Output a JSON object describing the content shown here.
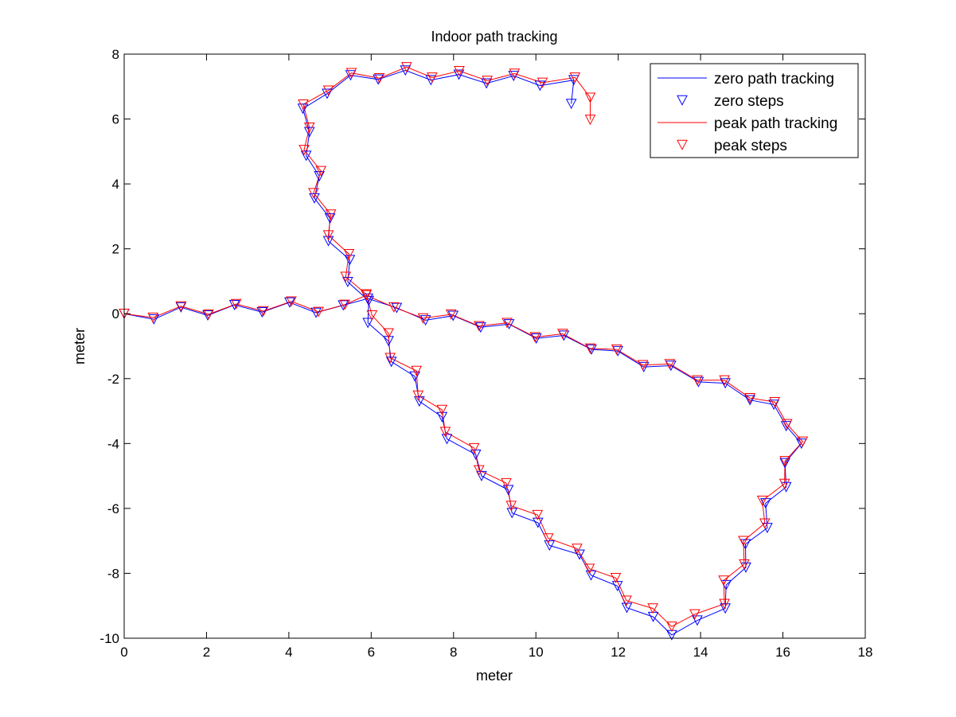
{
  "chart_data": {
    "type": "line",
    "title": "Indoor path tracking",
    "xlabel": "meter",
    "ylabel": "meter",
    "xlim": [
      0,
      18
    ],
    "ylim": [
      -10,
      8
    ],
    "xticks": [
      0,
      2,
      4,
      6,
      8,
      10,
      12,
      14,
      16,
      18
    ],
    "yticks": [
      -10,
      -8,
      -6,
      -4,
      -2,
      0,
      2,
      4,
      6,
      8
    ],
    "grid": false,
    "legend_position": "top-right",
    "series": [
      {
        "name": "zero path tracking",
        "kind": "line",
        "color": "#0000ff",
        "points": [
          [
            0,
            0
          ],
          [
            0.72,
            -0.17
          ],
          [
            1.38,
            0.2
          ],
          [
            2.03,
            -0.05
          ],
          [
            2.68,
            0.27
          ],
          [
            3.35,
            0.05
          ],
          [
            4.02,
            0.35
          ],
          [
            4.66,
            0.03
          ],
          [
            5.32,
            0.26
          ],
          [
            5.92,
            0.47
          ],
          [
            6.62,
            0.18
          ],
          [
            7.32,
            -0.2
          ],
          [
            7.99,
            -0.06
          ],
          [
            8.66,
            -0.42
          ],
          [
            9.35,
            -0.32
          ],
          [
            10.01,
            -0.76
          ],
          [
            10.68,
            -0.67
          ],
          [
            11.35,
            -1.1
          ],
          [
            11.99,
            -1.15
          ],
          [
            12.62,
            -1.64
          ],
          [
            13.28,
            -1.6
          ],
          [
            13.95,
            -2.1
          ],
          [
            14.6,
            -2.14
          ],
          [
            15.2,
            -2.66
          ],
          [
            15.78,
            -2.8
          ],
          [
            16.08,
            -3.46
          ],
          [
            16.45,
            -4.0
          ],
          [
            16.05,
            -4.6
          ],
          [
            16.08,
            -5.34
          ],
          [
            15.58,
            -5.84
          ],
          [
            15.62,
            -6.6
          ],
          [
            15.09,
            -7.1
          ],
          [
            15.1,
            -7.82
          ],
          [
            14.62,
            -8.36
          ],
          [
            14.6,
            -9.08
          ],
          [
            13.92,
            -9.45
          ],
          [
            13.3,
            -9.9
          ],
          [
            12.85,
            -9.34
          ],
          [
            12.21,
            -9.06
          ],
          [
            11.98,
            -8.39
          ],
          [
            11.34,
            -8.06
          ],
          [
            11.06,
            -7.42
          ],
          [
            10.33,
            -7.14
          ],
          [
            10.05,
            -6.44
          ],
          [
            9.42,
            -6.14
          ],
          [
            9.33,
            -5.43
          ],
          [
            8.68,
            -5.0
          ],
          [
            8.54,
            -4.34
          ],
          [
            7.84,
            -3.86
          ],
          [
            7.72,
            -3.18
          ],
          [
            7.17,
            -2.7
          ],
          [
            7.06,
            -1.93
          ],
          [
            6.49,
            -1.48
          ],
          [
            6.42,
            -0.84
          ],
          [
            5.92,
            -0.28
          ],
          [
            5.94,
            0.4
          ],
          [
            5.43,
            0.98
          ],
          [
            5.48,
            1.66
          ],
          [
            4.96,
            2.24
          ],
          [
            5.0,
            2.94
          ],
          [
            4.62,
            3.56
          ],
          [
            4.74,
            4.24
          ],
          [
            4.42,
            4.87
          ],
          [
            4.5,
            5.6
          ],
          [
            4.34,
            6.32
          ],
          [
            4.93,
            6.78
          ],
          [
            5.5,
            7.35
          ],
          [
            6.17,
            7.22
          ],
          [
            6.83,
            7.5
          ],
          [
            7.45,
            7.2
          ],
          [
            8.13,
            7.37
          ],
          [
            8.8,
            7.1
          ],
          [
            9.46,
            7.33
          ],
          [
            10.1,
            7.03
          ],
          [
            10.92,
            7.2
          ],
          [
            10.86,
            6.47
          ]
        ]
      },
      {
        "name": "zero steps",
        "kind": "markers",
        "color": "#0000ff",
        "marker": "triangle-down",
        "points": [
          [
            0,
            0
          ],
          [
            0.72,
            -0.17
          ],
          [
            1.38,
            0.2
          ],
          [
            2.03,
            -0.05
          ],
          [
            2.68,
            0.27
          ],
          [
            3.35,
            0.05
          ],
          [
            4.02,
            0.35
          ],
          [
            4.66,
            0.03
          ],
          [
            5.32,
            0.26
          ],
          [
            5.92,
            0.47
          ],
          [
            6.62,
            0.18
          ],
          [
            7.32,
            -0.2
          ],
          [
            7.99,
            -0.06
          ],
          [
            8.66,
            -0.42
          ],
          [
            9.35,
            -0.32
          ],
          [
            10.01,
            -0.76
          ],
          [
            10.68,
            -0.67
          ],
          [
            11.35,
            -1.1
          ],
          [
            11.99,
            -1.15
          ],
          [
            12.62,
            -1.64
          ],
          [
            13.28,
            -1.6
          ],
          [
            13.95,
            -2.1
          ],
          [
            14.6,
            -2.14
          ],
          [
            15.2,
            -2.66
          ],
          [
            15.78,
            -2.8
          ],
          [
            16.08,
            -3.46
          ],
          [
            16.45,
            -4.0
          ],
          [
            16.05,
            -4.6
          ],
          [
            16.08,
            -5.34
          ],
          [
            15.58,
            -5.84
          ],
          [
            15.62,
            -6.6
          ],
          [
            15.09,
            -7.1
          ],
          [
            15.1,
            -7.82
          ],
          [
            14.62,
            -8.36
          ],
          [
            14.6,
            -9.08
          ],
          [
            13.92,
            -9.45
          ],
          [
            13.3,
            -9.9
          ],
          [
            12.85,
            -9.34
          ],
          [
            12.21,
            -9.06
          ],
          [
            11.98,
            -8.39
          ],
          [
            11.34,
            -8.06
          ],
          [
            11.06,
            -7.42
          ],
          [
            10.33,
            -7.14
          ],
          [
            10.05,
            -6.44
          ],
          [
            9.42,
            -6.14
          ],
          [
            9.33,
            -5.43
          ],
          [
            8.68,
            -5.0
          ],
          [
            8.54,
            -4.34
          ],
          [
            7.84,
            -3.86
          ],
          [
            7.72,
            -3.18
          ],
          [
            7.17,
            -2.7
          ],
          [
            7.06,
            -1.93
          ],
          [
            6.49,
            -1.48
          ],
          [
            6.42,
            -0.84
          ],
          [
            5.92,
            -0.28
          ],
          [
            5.94,
            0.4
          ],
          [
            5.43,
            0.98
          ],
          [
            5.48,
            1.66
          ],
          [
            4.96,
            2.24
          ],
          [
            5.0,
            2.94
          ],
          [
            4.62,
            3.56
          ],
          [
            4.74,
            4.24
          ],
          [
            4.42,
            4.87
          ],
          [
            4.5,
            5.6
          ],
          [
            4.34,
            6.32
          ],
          [
            4.93,
            6.78
          ],
          [
            5.5,
            7.35
          ],
          [
            6.17,
            7.22
          ],
          [
            6.83,
            7.5
          ],
          [
            7.45,
            7.2
          ],
          [
            8.13,
            7.37
          ],
          [
            8.8,
            7.1
          ],
          [
            9.46,
            7.33
          ],
          [
            10.1,
            7.03
          ],
          [
            10.92,
            7.2
          ],
          [
            10.86,
            6.47
          ]
        ]
      },
      {
        "name": "peak path tracking",
        "kind": "line",
        "color": "#ff0000",
        "points": [
          [
            0,
            0
          ],
          [
            0.7,
            -0.12
          ],
          [
            1.38,
            0.23
          ],
          [
            2.05,
            -0.02
          ],
          [
            2.72,
            0.3
          ],
          [
            3.38,
            0.08
          ],
          [
            4.06,
            0.38
          ],
          [
            4.72,
            0.06
          ],
          [
            5.36,
            0.28
          ],
          [
            5.88,
            0.57
          ],
          [
            6.55,
            0.2
          ],
          [
            7.26,
            -0.14
          ],
          [
            7.94,
            -0.02
          ],
          [
            8.62,
            -0.38
          ],
          [
            9.3,
            -0.28
          ],
          [
            9.98,
            -0.72
          ],
          [
            10.65,
            -0.62
          ],
          [
            11.32,
            -1.07
          ],
          [
            11.96,
            -1.1
          ],
          [
            12.6,
            -1.58
          ],
          [
            13.25,
            -1.55
          ],
          [
            13.92,
            -2.05
          ],
          [
            14.58,
            -2.05
          ],
          [
            15.2,
            -2.6
          ],
          [
            15.8,
            -2.72
          ],
          [
            16.1,
            -3.4
          ],
          [
            16.48,
            -3.94
          ],
          [
            16.05,
            -4.54
          ],
          [
            16.04,
            -5.24
          ],
          [
            15.5,
            -5.76
          ],
          [
            15.56,
            -6.46
          ],
          [
            15.04,
            -7.0
          ],
          [
            15.06,
            -7.72
          ],
          [
            14.56,
            -8.22
          ],
          [
            14.58,
            -8.94
          ],
          [
            13.86,
            -9.26
          ],
          [
            13.3,
            -9.64
          ],
          [
            12.84,
            -9.08
          ],
          [
            12.2,
            -8.84
          ],
          [
            11.94,
            -8.14
          ],
          [
            11.3,
            -7.86
          ],
          [
            11.0,
            -7.24
          ],
          [
            10.3,
            -6.92
          ],
          [
            10.04,
            -6.2
          ],
          [
            9.4,
            -5.92
          ],
          [
            9.28,
            -5.22
          ],
          [
            8.62,
            -4.82
          ],
          [
            8.5,
            -4.14
          ],
          [
            7.8,
            -3.64
          ],
          [
            7.72,
            -2.96
          ],
          [
            7.14,
            -2.52
          ],
          [
            7.1,
            -1.76
          ],
          [
            6.46,
            -1.36
          ],
          [
            6.42,
            -0.6
          ],
          [
            6.02,
            -0.05
          ],
          [
            5.88,
            0.6
          ],
          [
            5.38,
            1.14
          ],
          [
            5.46,
            1.84
          ],
          [
            4.96,
            2.42
          ],
          [
            5.02,
            3.06
          ],
          [
            4.6,
            3.72
          ],
          [
            4.78,
            4.4
          ],
          [
            4.37,
            5.05
          ],
          [
            4.5,
            5.74
          ],
          [
            4.35,
            6.45
          ],
          [
            4.96,
            6.88
          ],
          [
            5.52,
            7.42
          ],
          [
            6.2,
            7.26
          ],
          [
            6.86,
            7.6
          ],
          [
            7.48,
            7.28
          ],
          [
            8.14,
            7.48
          ],
          [
            8.82,
            7.18
          ],
          [
            9.48,
            7.4
          ],
          [
            10.16,
            7.12
          ],
          [
            10.95,
            7.28
          ],
          [
            11.32,
            6.66
          ],
          [
            11.32,
            5.98
          ]
        ]
      },
      {
        "name": "peak steps",
        "kind": "markers",
        "color": "#ff0000",
        "marker": "triangle-down",
        "points": [
          [
            0,
            0
          ],
          [
            0.7,
            -0.12
          ],
          [
            1.38,
            0.23
          ],
          [
            2.05,
            -0.02
          ],
          [
            2.72,
            0.3
          ],
          [
            3.38,
            0.08
          ],
          [
            4.06,
            0.38
          ],
          [
            4.72,
            0.06
          ],
          [
            5.36,
            0.28
          ],
          [
            5.88,
            0.57
          ],
          [
            6.55,
            0.2
          ],
          [
            7.26,
            -0.14
          ],
          [
            7.94,
            -0.02
          ],
          [
            8.62,
            -0.38
          ],
          [
            9.3,
            -0.28
          ],
          [
            9.98,
            -0.72
          ],
          [
            10.65,
            -0.62
          ],
          [
            11.32,
            -1.07
          ],
          [
            11.96,
            -1.1
          ],
          [
            12.6,
            -1.58
          ],
          [
            13.25,
            -1.55
          ],
          [
            13.92,
            -2.05
          ],
          [
            14.58,
            -2.05
          ],
          [
            15.2,
            -2.6
          ],
          [
            15.8,
            -2.72
          ],
          [
            16.1,
            -3.4
          ],
          [
            16.48,
            -3.94
          ],
          [
            16.05,
            -4.54
          ],
          [
            16.04,
            -5.24
          ],
          [
            15.5,
            -5.76
          ],
          [
            15.56,
            -6.46
          ],
          [
            15.04,
            -7.0
          ],
          [
            15.06,
            -7.72
          ],
          [
            14.56,
            -8.22
          ],
          [
            14.58,
            -8.94
          ],
          [
            13.86,
            -9.26
          ],
          [
            13.3,
            -9.64
          ],
          [
            12.84,
            -9.08
          ],
          [
            12.2,
            -8.84
          ],
          [
            11.94,
            -8.14
          ],
          [
            11.3,
            -7.86
          ],
          [
            11.0,
            -7.24
          ],
          [
            10.3,
            -6.92
          ],
          [
            10.04,
            -6.2
          ],
          [
            9.4,
            -5.92
          ],
          [
            9.28,
            -5.22
          ],
          [
            8.62,
            -4.82
          ],
          [
            8.5,
            -4.14
          ],
          [
            7.8,
            -3.64
          ],
          [
            7.72,
            -2.96
          ],
          [
            7.14,
            -2.52
          ],
          [
            7.1,
            -1.76
          ],
          [
            6.46,
            -1.36
          ],
          [
            6.42,
            -0.6
          ],
          [
            6.02,
            -0.05
          ],
          [
            5.88,
            0.6
          ],
          [
            5.38,
            1.14
          ],
          [
            5.46,
            1.84
          ],
          [
            4.96,
            2.42
          ],
          [
            5.02,
            3.06
          ],
          [
            4.6,
            3.72
          ],
          [
            4.78,
            4.4
          ],
          [
            4.37,
            5.05
          ],
          [
            4.5,
            5.74
          ],
          [
            4.35,
            6.45
          ],
          [
            4.96,
            6.88
          ],
          [
            5.52,
            7.42
          ],
          [
            6.2,
            7.26
          ],
          [
            6.86,
            7.6
          ],
          [
            7.48,
            7.28
          ],
          [
            8.14,
            7.48
          ],
          [
            8.82,
            7.18
          ],
          [
            9.48,
            7.4
          ],
          [
            10.16,
            7.12
          ],
          [
            10.95,
            7.28
          ],
          [
            11.32,
            6.66
          ],
          [
            11.32,
            5.98
          ]
        ]
      }
    ]
  }
}
